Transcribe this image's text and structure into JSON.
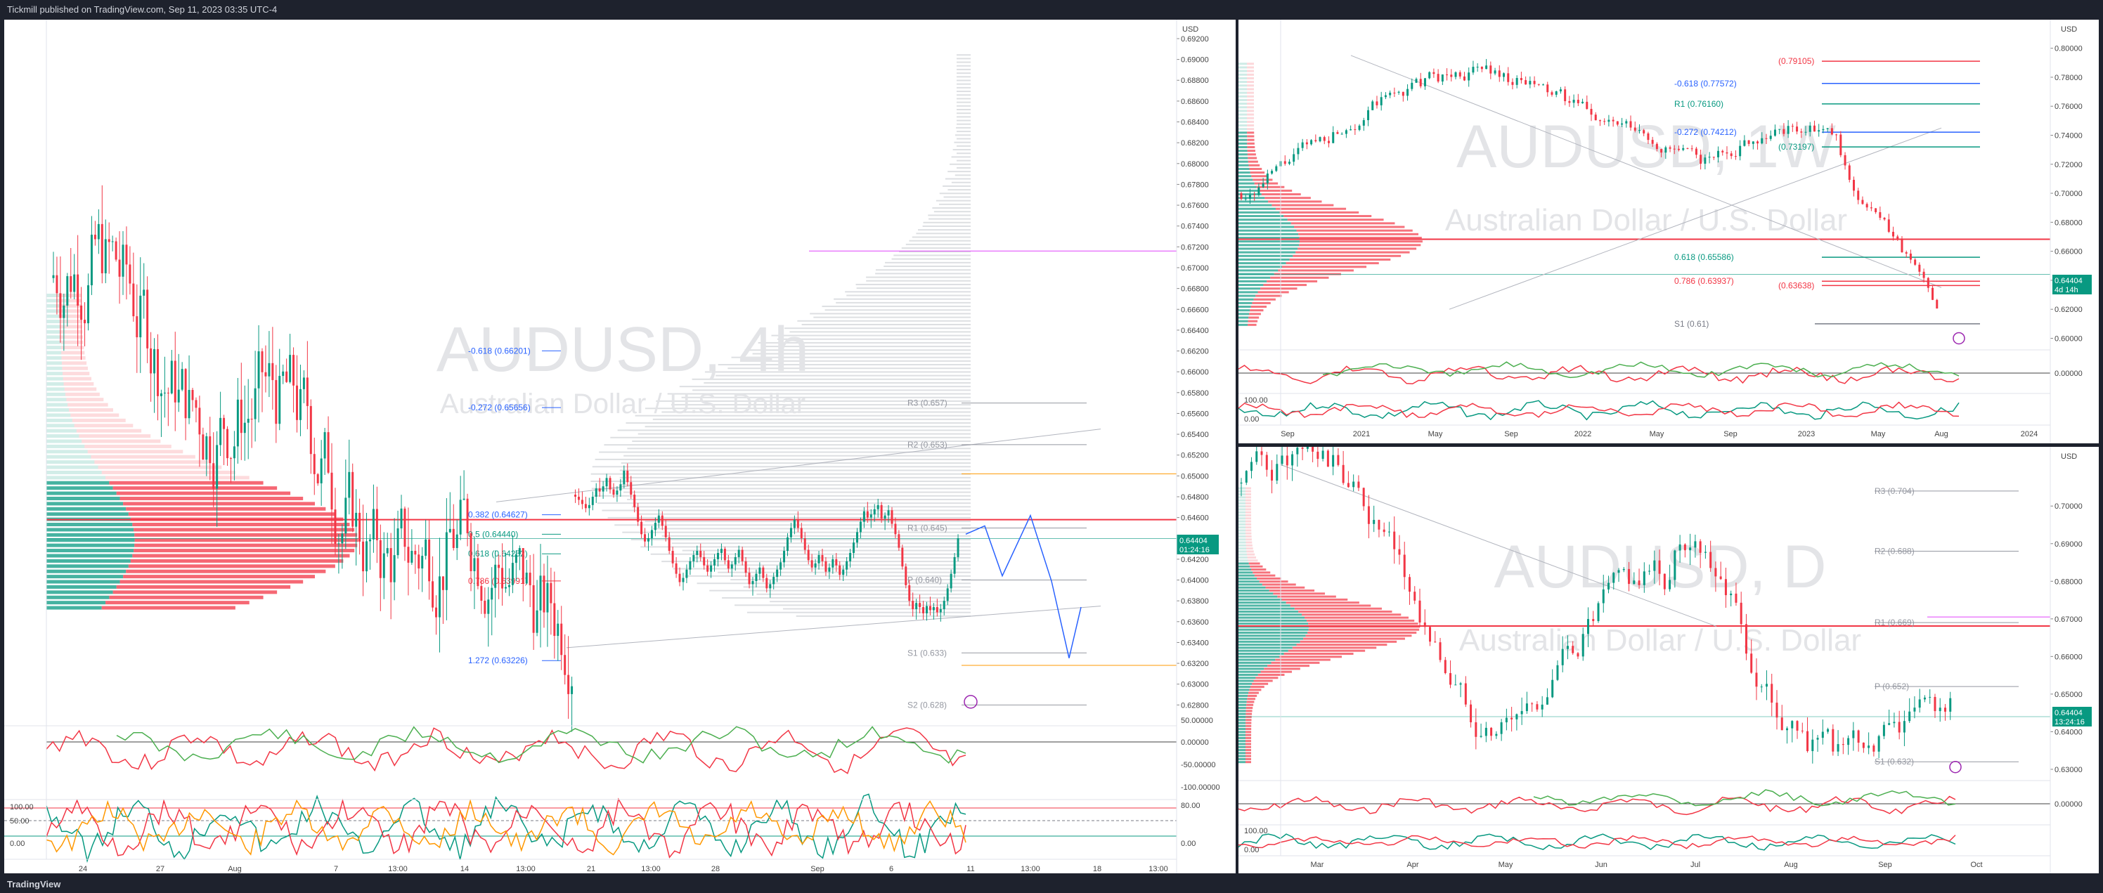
{
  "header": {
    "publisher_text": "Tickmill published on TradingView.com, Sep 11, 2023 03:35 UTC-4"
  },
  "footer": {
    "brand": "TradingView"
  },
  "charts": {
    "h4": {
      "title": "AUDUSD, 4h",
      "subtitle": "Australian Dollar / U.S. Dollar",
      "currency": "USD",
      "price_badge": "0.64404",
      "countdown": "01:24:16",
      "ylim": [
        0.626,
        0.6922
      ],
      "y_ticks": [
        "0.69200",
        "0.69000",
        "0.68800",
        "0.68600",
        "0.68400",
        "0.68200",
        "0.68000",
        "0.67800",
        "0.67600",
        "0.67400",
        "0.67200",
        "0.67000",
        "0.66800",
        "0.66600",
        "0.66400",
        "0.66200",
        "0.66000",
        "0.65800",
        "0.65600",
        "0.65400",
        "0.65200",
        "0.65000",
        "0.64800",
        "0.64600",
        "0.64400",
        "0.64200",
        "0.64000",
        "0.63800",
        "0.63600",
        "0.63400",
        "0.63200",
        "0.63000",
        "0.62800"
      ],
      "x_ticks": [
        "24",
        "27",
        "Aug",
        "7",
        "13:00",
        "14",
        "13:00",
        "21",
        "13:00",
        "28",
        "Sep",
        "6",
        "11",
        "13:00",
        "18",
        "13:00"
      ],
      "pivots": [
        {
          "label": "R3 (0.657)",
          "value": 0.657
        },
        {
          "label": "R2 (0.653)",
          "value": 0.653
        },
        {
          "label": "R1 (0.645)",
          "value": 0.645
        },
        {
          "label": "P (0.640)",
          "value": 0.64
        },
        {
          "label": "S1 (0.633)",
          "value": 0.633
        },
        {
          "label": "S2 (0.628)",
          "value": 0.628
        }
      ],
      "fibs": [
        {
          "label": "-0.618 (0.66201)",
          "value": 0.66201
        },
        {
          "label": "-0.272 (0.65656)",
          "value": 0.65656
        },
        {
          "label": "0.382 (0.64627)",
          "value": 0.64627
        },
        {
          "label": "0.5 (0.64440)",
          "value": 0.6444
        },
        {
          "label": "0.618 (0.64252)",
          "value": 0.64252
        },
        {
          "label": "0.786 (0.63991)",
          "value": 0.63991
        },
        {
          "label": "1.272 (0.63226)",
          "value": 0.63226
        }
      ],
      "rsi_ticks": [
        "50.00000",
        "0.00000",
        "-50.00000",
        "-100.00000"
      ],
      "stoch_ticks": [
        "100.00",
        "50.00",
        "0.00",
        "80.00",
        "0.00"
      ],
      "candles": "0.6482,0.6487,0.6474,0.6480|0.6480,0.6488,0.6472,0.6477|0.6477,0.6485,0.6468,0.6473|0.6473,0.6480,0.6465,0.6469|0.6469,0.6479,0.6462,0.6472|0.6472,0.6485,0.6467,0.6480|0.6480,0.6493,0.6474,0.6488|0.6488,0.6498,0.6480,0.6485|0.6485,0.6495,0.6478,0.6490|0.6490,0.6502,0.6485,0.6498|0.6498,0.6500,0.6483,0.6487|0.6487,0.6493,0.6479,0.6482|0.6482,0.6490,0.6475,0.6486|0.6486,0.6497,0.6480,0.6492|0.6492,0.6510,0.6488,0.6505|0.6505,0.6512,0.6490,0.6494|0.6494,0.6500,0.6478,0.6482|0.6482,0.6486,0.6465,0.6470|0.6470,0.6474,0.6452,0.6456|0.6456,0.6462,0.6440,0.6444|0.6444,0.6450,0.6432,0.6437|0.6437,0.6445,0.6428,0.6440|0.6440,0.6452,0.6433,0.6448|0.6448,0.6460,0.6442,0.6455|0.6455,0.6468,0.6450,0.6462|0.6462,0.6466,0.6448,0.6452|0.6452,0.6458,0.6437,0.6441|0.6441,0.6446,0.6425,0.6428|0.6428,0.6432,0.6412,0.6416|0.6416,0.6422,0.6402,0.6406|0.6406,0.6412,0.6394,0.6398|0.6398,0.6407,0.6390,0.6402|0.6402,0.6415,0.6397,0.6410|0.6410,0.6422,0.6405,0.6418|0.6418,0.6428,0.6412,0.6424|0.6424,0.6433,0.6417,0.6428|0.6428,0.6435,0.6418,0.6422|0.6422,0.6428,0.6410,0.6414|0.6414,0.6420,0.6404,0.6408|0.6408,0.6418,0.6402,0.6414|0.6414,0.6425,0.6408,0.6420|0.6420,0.6430,0.6413,0.6426|0.6426,0.6435,0.6419,0.6430|0.6430,0.6432,0.6415,0.6419|0.6419,0.6424,0.6407,0.6411|0.6411,0.6418,0.6403,0.6415|0.6415,0.6426,0.6409,0.6422|0.6422,0.6433,0.6416,0.6429|0.6429,0.6432,0.6414,0.6418|0.6418,0.6422,0.6403,0.6407|0.6407,0.6412,0.6392,0.6396|0.6396,0.6403,0.6385,0.6399|0.6399,0.6410,0.6393,0.6406|0.6406,0.6417,0.6400,0.6412|0.6412,0.6414,0.6398,0.6402|0.6402,0.6406,0.6388,0.6392|0.6392,0.6400,0.6383,0.6396|0.6396,0.6407,0.6391,0.6403|0.6403,0.6414,0.6398,0.6410|0.6410,0.6421,0.6404,0.6417|0.6417,0.6432,0.6412,0.6428|0.6428,0.6445,0.6423,0.6441|0.6441,0.6455,0.6436,0.6450|0.6450,0.6462,0.6444,0.6458|0.6458,0.6466,0.6446,0.6450|0.6450,0.6455,0.6436,0.6440|0.6440,0.6446,0.6425,0.6429|0.6429,0.6434,0.6415,0.6419|0.6419,0.6425,0.6408,0.6412|0.6412,0.6420,0.6405,0.6416|0.6416,0.6428,0.6410,0.6424|0.6424,0.6430,0.6413,0.6418|0.6418,0.6422,0.6404,0.6408|0.6408,0.6416,0.6401,0.6412|0.6412,0.6424,0.6406,0.6420|0.6420,0.6426,0.6408,0.6414|0.6414,0.6418,0.6400,0.6405|0.6405,0.6414,0.6399,0.6410|0.6410,0.6422,0.6404,0.6418|0.6418,0.6430,0.6412,0.6426|0.6426,0.6440,0.6421,0.6436|0.6436,0.6450,0.6431,0.6446|0.6446,0.6460,0.6440,0.6456|0.6456,0.6470,0.6450,0.6466|0.6466,0.6475,0.6455,0.6460|0.6460,0.6468,0.6450,0.6463|0.6463,0.6473,0.6456,0.6468|0.6468,0.6478,0.6460,0.6472|0.6472,0.6475,0.6455,0.6459|0.6459,0.6465,0.6448,0.6462|0.6462,0.6472,0.6455,0.6467|0.6467,0.6470,0.6450,0.6454|0.6454,0.6460,0.6440,0.6444|0.6444,0.6448,0.6428,0.6431|0.6431,0.6434,0.6410,0.6413|0.6413,0.6416,0.6392,0.6395|0.6395,0.6400,0.6375,0.6380|0.6380,0.6388,0.6365,0.6372|0.6372,0.6382,0.6362,0.6378|0.6378,0.6386,0.6368,0.6374|0.6374,0.6380,0.6362,0.6368|0.6368,0.6379,0.6361,0.6375|0.6375,0.6384,0.6366,0.6371|0.6371,0.6378,0.6362,0.6374|0.6374,0.6382,0.6365,0.6369|0.6369,0.6377,0.6360,0.6372|0.6372,0.6384,0.6366,0.6380|0.6380,0.6396,0.6376,0.6392|0.6392,0.6410,0.6388,0.6406|0.6406,0.6426,0.6402,0.6422|0.6422,0.6444,0.6418,0.6440"
    },
    "w1": {
      "title": "AUDUSD, 1W",
      "subtitle": "Australian Dollar / U.S. Dollar",
      "currency": "USD",
      "price_badge": "0.64404",
      "countdown": "4d 14h",
      "ylim": [
        0.592,
        0.81
      ],
      "y_ticks": [
        "0.80000",
        "0.78000",
        "0.76000",
        "0.74000",
        "0.72000",
        "0.70000",
        "0.68000",
        "0.66000",
        "0.64000",
        "0.62000",
        "0.60000"
      ],
      "x_ticks": [
        "Sep",
        "2021",
        "May",
        "Sep",
        "2022",
        "May",
        "Sep",
        "2023",
        "May",
        "Aug",
        "2024"
      ],
      "levels": [
        {
          "label": "(0.79105)",
          "value": 0.79105,
          "color": "#f23645"
        },
        {
          "label": "-0.618 (0.77572)",
          "value": 0.77572,
          "color": "#2962ff"
        },
        {
          "label": "R1 (0.76160)",
          "value": 0.7616,
          "color": "#089981"
        },
        {
          "label": "-0.272 (0.74212)",
          "value": 0.74212,
          "color": "#2962ff"
        },
        {
          "label": "(0.73197)",
          "value": 0.73197,
          "color": "#089981"
        },
        {
          "label": "0.618 (0.65586)",
          "value": 0.65586,
          "color": "#089981"
        },
        {
          "label": "0.786 (0.63937)",
          "value": 0.63937,
          "color": "#f23645"
        },
        {
          "label": "(0.63638)",
          "value": 0.63638,
          "color": "#f23645"
        },
        {
          "label": "S1 (0.61)",
          "value": 0.61,
          "color": "#787b86"
        }
      ],
      "rsi_ticks": [
        "0.00000"
      ],
      "stoch_ticks": [
        "100.00",
        "0.00"
      ]
    },
    "d1": {
      "title": "AUDUSD, D",
      "subtitle": "Australian Dollar / U.S. Dollar",
      "currency": "USD",
      "price_badge": "0.64404",
      "countdown": "13:24:16",
      "ylim": [
        0.627,
        0.712
      ],
      "y_ticks": [
        "0.70000",
        "0.69000",
        "0.68000",
        "0.67000",
        "0.66000",
        "0.65000",
        "0.64000",
        "0.63000"
      ],
      "x_ticks": [
        "Mar",
        "Apr",
        "May",
        "Jun",
        "Jul",
        "Aug",
        "Sep",
        "Oct"
      ],
      "pivots": [
        {
          "label": "R3 (0.704)",
          "value": 0.704
        },
        {
          "label": "R2 (0.688)",
          "value": 0.688
        },
        {
          "label": "R1 (0.669)",
          "value": 0.669
        },
        {
          "label": "P (0.652)",
          "value": 0.652
        },
        {
          "label": "S1 (0.632)",
          "value": 0.632
        }
      ],
      "rsi_ticks": [
        "0.00000"
      ],
      "stoch_ticks": [
        "100.00",
        "0.00"
      ]
    }
  }
}
